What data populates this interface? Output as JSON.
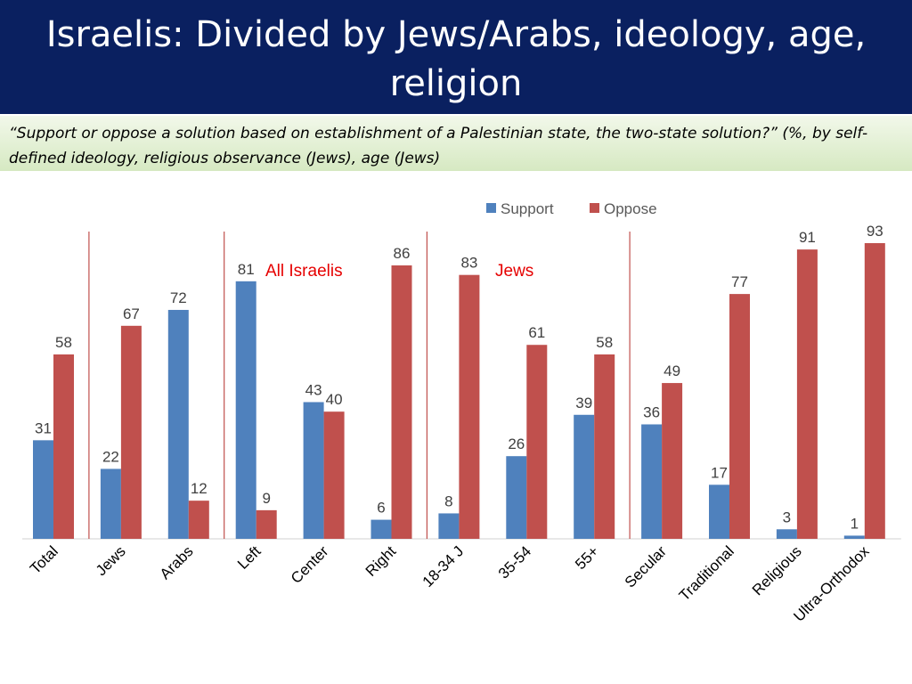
{
  "header": {
    "title": "Israelis: Divided by Jews/Arabs, ideology, age, religion",
    "subtitle": "“Support or oppose a solution based on establishment of a Palestinian state, the two-state solution?” (%, by self-defined ideology, religious observance (Jews), age (Jews)"
  },
  "colors": {
    "support": "#4f81bd",
    "oppose": "#c0504d",
    "annotation": "#e60000",
    "divider": "#c0504d",
    "title_bg": "#0a2060"
  },
  "chart_data": {
    "type": "bar",
    "categories": [
      "Total",
      "Jews",
      "Arabs",
      "Left",
      "Center",
      "Right",
      "18-34 J",
      "35-54",
      "55+",
      "Secular",
      "Traditional",
      "Religious",
      "Ultra-Orthodox"
    ],
    "series": [
      {
        "name": "Support",
        "values": [
          31,
          22,
          72,
          81,
          43,
          6,
          8,
          26,
          39,
          36,
          17,
          3,
          1
        ]
      },
      {
        "name": "Oppose",
        "values": [
          58,
          67,
          12,
          9,
          40,
          86,
          83,
          61,
          58,
          49,
          77,
          91,
          93
        ]
      }
    ],
    "ylim": [
      0,
      100
    ],
    "grid": false,
    "legend": "top",
    "annotations": [
      "All Israelis",
      "Jews"
    ]
  }
}
